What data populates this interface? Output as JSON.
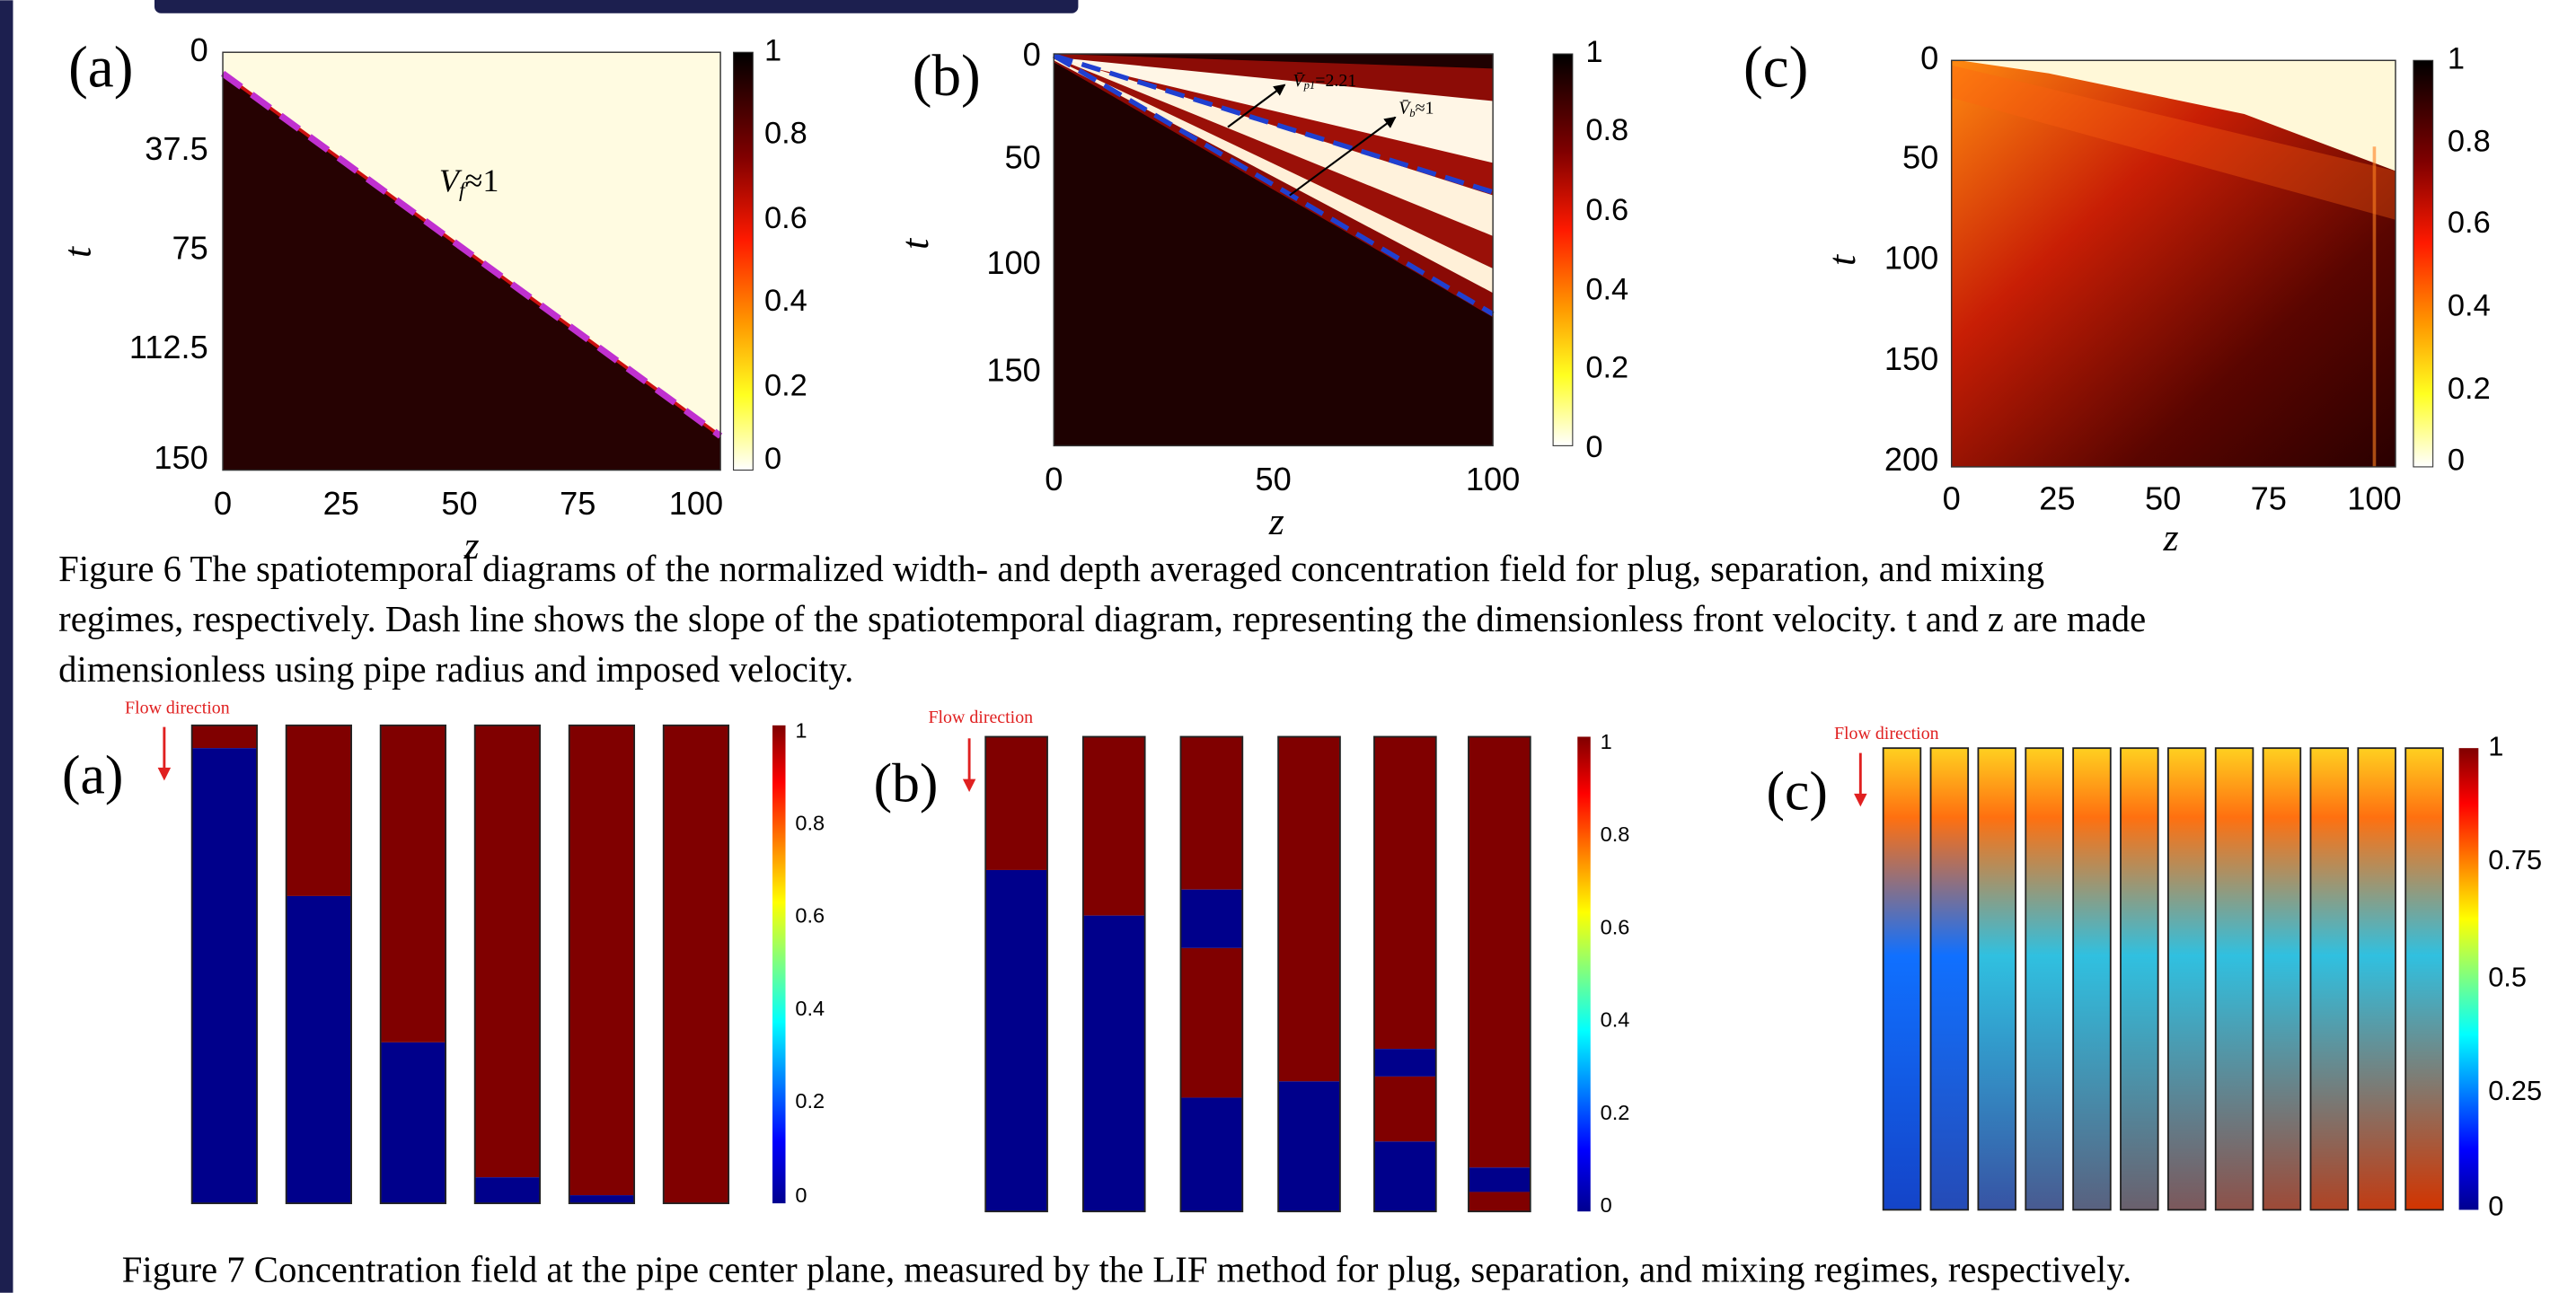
{
  "figure6": {
    "panels": [
      {
        "label": "(a)",
        "y_label": "t",
        "x_label": "z",
        "yticks": [
          "0",
          "37.5",
          "75",
          "112.5",
          "150"
        ],
        "xticks": [
          "0",
          "25",
          "50",
          "75",
          "100"
        ],
        "colorbar_ticks": [
          "1",
          "0.8",
          "0.6",
          "0.4",
          "0.2",
          "0"
        ],
        "annotations": [
          {
            "symbol": "V",
            "subscript": "f",
            "text": "≈1"
          }
        ]
      },
      {
        "label": "(b)",
        "y_label": "t",
        "x_label": "z",
        "yticks": [
          "0",
          "50",
          "100",
          "150"
        ],
        "xticks": [
          "0",
          "50",
          "100"
        ],
        "colorbar_ticks": [
          "1",
          "0.8",
          "0.6",
          "0.4",
          "0.2",
          "0"
        ],
        "annotations": [
          {
            "symbol": "V̄",
            "subscript": "p1",
            "text": "=2.21"
          },
          {
            "symbol": "V̄",
            "subscript": "b",
            "text": "≈1"
          }
        ]
      },
      {
        "label": "(c)",
        "y_label": "t",
        "x_label": "z",
        "yticks": [
          "0",
          "50",
          "100",
          "150",
          "200"
        ],
        "xticks": [
          "0",
          "25",
          "50",
          "75",
          "100"
        ],
        "colorbar_ticks": [
          "1",
          "0.8",
          "0.6",
          "0.4",
          "0.2",
          "0"
        ],
        "annotations": []
      }
    ],
    "caption": [
      "Figure 6 The spatiotemporal diagrams of the normalized width- and depth averaged concentration field for plug, separation, and mixing",
      "regimes, respectively. Dash line shows the slope of the spatiotemporal diagram, representing the dimensionless front velocity. t and z are made",
      "dimensionless using pipe radius and imposed velocity."
    ]
  },
  "figure7": {
    "panels": [
      {
        "label": "(a)",
        "flow_label": "Flow direction",
        "colorbar_ticks": [
          "1",
          "0.8",
          "0.6",
          "0.4",
          "0.2",
          "0"
        ]
      },
      {
        "label": "(b)",
        "flow_label": "Flow direction",
        "colorbar_ticks": [
          "1",
          "0.8",
          "0.6",
          "0.4",
          "0.2",
          "0"
        ]
      },
      {
        "label": "(c)",
        "flow_label": "Flow direction",
        "colorbar_ticks": [
          "1",
          "0.75",
          "0.5",
          "0.25",
          "0"
        ]
      }
    ],
    "caption": "Figure 7 Concentration field at the pipe center plane, measured by the LIF method for plug, separation, and mixing regimes, respectively."
  }
}
